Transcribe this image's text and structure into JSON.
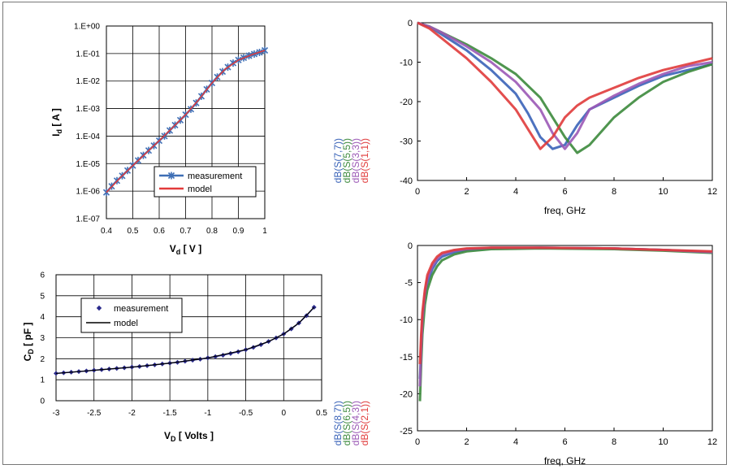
{
  "chart_data": [
    {
      "id": "iv",
      "type": "line",
      "xlabel": "V",
      "xlabel_sub": "d",
      "xlabel_unit": "[ V ]",
      "ylabel": "I",
      "ylabel_sub": "d",
      "ylabel_unit": "[ A ]",
      "xlim": [
        0.4,
        1.0
      ],
      "ylim_log10": [
        -7,
        0
      ],
      "yscale": "log",
      "x_ticks": [
        "0.4",
        "0.5",
        "0.6",
        "0.7",
        "0.8",
        "0.9",
        "1"
      ],
      "y_ticks": [
        "1.E+00",
        "1.E-01",
        "1.E-02",
        "1.E-03",
        "1.E-04",
        "1.E-05",
        "1.E-06",
        "1.E-07"
      ],
      "grid": true,
      "legend_position": "lower-right",
      "series": [
        {
          "name": "measurement",
          "color": "#3f6fb5",
          "marker": "star",
          "x": [
            0.4,
            0.42,
            0.44,
            0.46,
            0.48,
            0.5,
            0.52,
            0.54,
            0.56,
            0.58,
            0.6,
            0.62,
            0.64,
            0.66,
            0.68,
            0.7,
            0.72,
            0.74,
            0.76,
            0.78,
            0.8,
            0.82,
            0.84,
            0.86,
            0.88,
            0.9,
            0.92,
            0.94,
            0.96,
            0.98,
            1.0
          ],
          "y": [
            9e-07,
            1.5e-06,
            2.4e-06,
            3.6e-06,
            5.6e-06,
            8.5e-06,
            1.3e-05,
            2e-05,
            3e-05,
            4.5e-05,
            6.8e-05,
            0.0001,
            0.00016,
            0.00025,
            0.00038,
            0.0006,
            0.00095,
            0.0016,
            0.0028,
            0.005,
            0.0085,
            0.014,
            0.022,
            0.032,
            0.045,
            0.058,
            0.07,
            0.083,
            0.096,
            0.11,
            0.13
          ]
        },
        {
          "name": "model",
          "color": "#e23a3a",
          "x": [
            0.4,
            0.45,
            0.5,
            0.55,
            0.6,
            0.65,
            0.7,
            0.75,
            0.8,
            0.85,
            0.9,
            0.95,
            1.0
          ],
          "y": [
            9e-07,
            2.9e-06,
            8.5e-06,
            2.4e-05,
            6.8e-05,
            0.0002,
            0.0006,
            0.0021,
            0.0085,
            0.027,
            0.058,
            0.09,
            0.13
          ]
        }
      ]
    },
    {
      "id": "cv",
      "type": "line",
      "xlabel": "V",
      "xlabel_sub": "D",
      "xlabel_unit": "[ Volts ]",
      "ylabel": "C",
      "ylabel_sub": "D",
      "ylabel_unit": "[ pF ]",
      "xlim": [
        -3,
        0.5
      ],
      "ylim": [
        0,
        6
      ],
      "x_ticks": [
        "-3",
        "-2.5",
        "-2",
        "-1.5",
        "-1",
        "-0.5",
        "0",
        "0.5"
      ],
      "y_ticks": [
        "0",
        "1",
        "2",
        "3",
        "4",
        "5",
        "6"
      ],
      "grid": true,
      "legend_position": "top-left",
      "series": [
        {
          "name": "measurement",
          "color": "#2a2a8c",
          "marker": "diamond",
          "x": [
            -3.0,
            -2.9,
            -2.8,
            -2.7,
            -2.6,
            -2.5,
            -2.4,
            -2.3,
            -2.2,
            -2.1,
            -2.0,
            -1.9,
            -1.8,
            -1.7,
            -1.6,
            -1.5,
            -1.4,
            -1.3,
            -1.2,
            -1.1,
            -1.0,
            -0.9,
            -0.8,
            -0.7,
            -0.6,
            -0.5,
            -0.4,
            -0.3,
            -0.2,
            -0.1,
            0.0,
            0.1,
            0.2,
            0.3,
            0.4
          ],
          "y": [
            1.3,
            1.33,
            1.36,
            1.39,
            1.42,
            1.45,
            1.48,
            1.51,
            1.54,
            1.57,
            1.6,
            1.63,
            1.67,
            1.71,
            1.75,
            1.79,
            1.83,
            1.88,
            1.93,
            1.98,
            2.04,
            2.1,
            2.17,
            2.25,
            2.33,
            2.43,
            2.54,
            2.67,
            2.82,
            2.99,
            3.18,
            3.42,
            3.7,
            4.05,
            4.45
          ]
        },
        {
          "name": "model",
          "color": "#000000",
          "x": [
            -3.0,
            -2.5,
            -2.0,
            -1.5,
            -1.0,
            -0.5,
            -0.2,
            0.0,
            0.2,
            0.4
          ],
          "y": [
            1.3,
            1.45,
            1.6,
            1.79,
            2.04,
            2.43,
            2.82,
            3.18,
            3.7,
            4.45
          ]
        }
      ]
    },
    {
      "id": "s11",
      "type": "line",
      "xlabel": "freq, GHz",
      "xlim": [
        0,
        12
      ],
      "ylim": [
        -40,
        0
      ],
      "x_ticks": [
        "0",
        "2",
        "4",
        "6",
        "8",
        "10",
        "12"
      ],
      "y_ticks": [
        "0",
        "-10",
        "-20",
        "-30",
        "-40"
      ],
      "grid": false,
      "series": [
        {
          "name": "dB(S(7,7))",
          "color": "#3a63b8",
          "x": [
            0,
            0.5,
            1,
            2,
            3,
            4,
            4.5,
            5,
            5.5,
            6,
            6.5,
            7,
            8,
            9,
            10,
            11,
            12
          ],
          "y": [
            0,
            -1,
            -3,
            -7,
            -12,
            -18,
            -23,
            -29,
            -32,
            -31,
            -26,
            -22,
            -19,
            -16,
            -13.5,
            -12,
            -10.5
          ]
        },
        {
          "name": "dB(S(5,5))",
          "color": "#3c8a3c",
          "x": [
            0,
            0.5,
            1,
            2,
            3,
            4,
            5,
            5.5,
            6,
            6.5,
            7,
            8,
            9,
            10,
            11,
            12
          ],
          "y": [
            0,
            -1,
            -2.5,
            -5.5,
            -9,
            -13,
            -19,
            -24,
            -29,
            -33,
            -31,
            -24,
            -19,
            -15,
            -12.5,
            -10.5
          ]
        },
        {
          "name": "dB(S(3,3))",
          "color": "#9b59b6",
          "x": [
            0,
            0.5,
            1,
            2,
            3,
            4,
            5,
            5.5,
            6,
            6.5,
            7,
            8,
            9,
            10,
            11,
            12
          ],
          "y": [
            0,
            -1,
            -2.5,
            -6,
            -10,
            -15,
            -22,
            -28,
            -32,
            -28,
            -22,
            -18.5,
            -15.5,
            -13,
            -11,
            -10
          ]
        },
        {
          "name": "dB(S(1,1))",
          "color": "#e03b3b",
          "x": [
            0,
            0.5,
            1,
            2,
            3,
            4,
            4.5,
            5,
            5.5,
            6,
            6.5,
            7,
            8,
            9,
            10,
            11,
            12
          ],
          "y": [
            0,
            -1.5,
            -4,
            -9,
            -15,
            -22,
            -27,
            -32,
            -29,
            -24,
            -21,
            -19,
            -16.5,
            -14,
            -12,
            -10.5,
            -9
          ]
        }
      ]
    },
    {
      "id": "s21",
      "type": "line",
      "xlabel": "freq, GHz",
      "xlim": [
        0,
        12
      ],
      "ylim": [
        -25,
        0
      ],
      "x_ticks": [
        "0",
        "2",
        "4",
        "6",
        "8",
        "10",
        "12"
      ],
      "y_ticks": [
        "0",
        "-5",
        "-10",
        "-15",
        "-20",
        "-25"
      ],
      "grid": false,
      "series": [
        {
          "name": "dB(S(8,7))",
          "color": "#3a63b8",
          "x": [
            0.1,
            0.15,
            0.2,
            0.3,
            0.4,
            0.6,
            0.8,
            1,
            1.5,
            2,
            3,
            5,
            8,
            10,
            12
          ],
          "y": [
            -18,
            -14,
            -10,
            -7,
            -5,
            -3.2,
            -2.1,
            -1.5,
            -0.9,
            -0.6,
            -0.4,
            -0.3,
            -0.4,
            -0.6,
            -0.9
          ]
        },
        {
          "name": "dB(S(6,5))",
          "color": "#3c8a3c",
          "x": [
            0.1,
            0.15,
            0.2,
            0.3,
            0.4,
            0.6,
            0.8,
            1,
            1.5,
            2,
            3,
            5,
            8,
            10,
            12
          ],
          "y": [
            -21,
            -16,
            -12,
            -8,
            -6,
            -4,
            -2.8,
            -2,
            -1.2,
            -0.8,
            -0.5,
            -0.4,
            -0.5,
            -0.7,
            -1.0
          ]
        },
        {
          "name": "dB(S(4,3))",
          "color": "#9b59b6",
          "x": [
            0.1,
            0.15,
            0.2,
            0.3,
            0.4,
            0.6,
            0.8,
            1,
            1.5,
            2,
            3,
            5,
            8,
            10,
            12
          ],
          "y": [
            -19,
            -14,
            -10,
            -6.5,
            -4.5,
            -2.8,
            -1.8,
            -1.2,
            -0.7,
            -0.5,
            -0.3,
            -0.3,
            -0.4,
            -0.6,
            -0.9
          ]
        },
        {
          "name": "dB(S(2,1))",
          "color": "#e03b3b",
          "x": [
            0.1,
            0.15,
            0.2,
            0.3,
            0.4,
            0.6,
            0.8,
            1,
            1.5,
            2,
            3,
            5,
            8,
            10,
            12
          ],
          "y": [
            -16,
            -12,
            -9,
            -6,
            -4,
            -2.4,
            -1.5,
            -1,
            -0.6,
            -0.4,
            -0.3,
            -0.3,
            -0.4,
            -0.6,
            -0.8
          ]
        }
      ]
    }
  ]
}
